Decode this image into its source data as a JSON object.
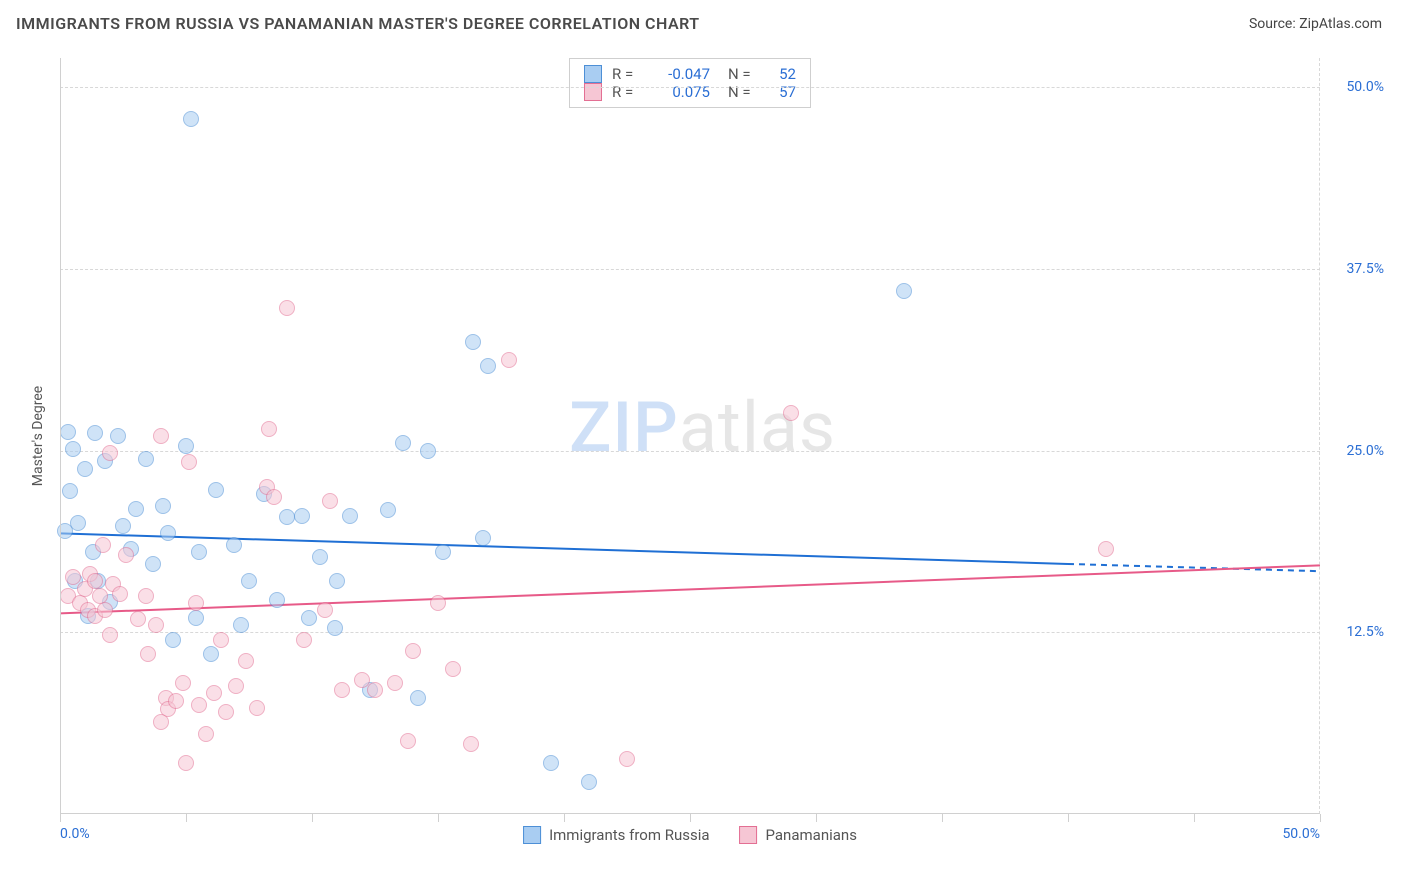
{
  "title": "IMMIGRANTS FROM RUSSIA VS PANAMANIAN MASTER'S DEGREE CORRELATION CHART",
  "source_label": "Source: ",
  "source_name": "ZipAtlas.com",
  "y_axis_title": "Master's Degree",
  "watermark": {
    "part1": "ZIP",
    "part2": "atlas"
  },
  "chart": {
    "type": "scatter",
    "xlim": [
      0,
      50
    ],
    "ylim": [
      0,
      52
    ],
    "x_tick_step": 5,
    "y_ticks": [
      12.5,
      25.0,
      37.5,
      50.0
    ],
    "y_tick_labels": [
      "12.5%",
      "25.0%",
      "37.5%",
      "50.0%"
    ],
    "x_min_label": "0.0%",
    "x_max_label": "50.0%",
    "background_color": "#ffffff",
    "grid_color": "#d8d8d8",
    "axis_label_color": "#2a6ed4",
    "marker_radius": 8,
    "marker_opacity": 0.55,
    "series": [
      {
        "name": "Immigrants from Russia",
        "color_fill": "#a9cdf2",
        "color_stroke": "#4d8fd6",
        "r": "-0.047",
        "n": "52",
        "trend": {
          "y_start": 19.3,
          "y_end_solid": 17.2,
          "x_end_solid": 40,
          "y_end_dash": 16.7,
          "color": "#1f6fd4",
          "width": 2
        },
        "points": [
          [
            5.2,
            47.8
          ],
          [
            0.3,
            26.3
          ],
          [
            0.5,
            25.1
          ],
          [
            1.4,
            26.2
          ],
          [
            1.8,
            24.3
          ],
          [
            1.0,
            23.7
          ],
          [
            2.3,
            26.0
          ],
          [
            3.0,
            21.0
          ],
          [
            3.4,
            24.4
          ],
          [
            4.1,
            21.2
          ],
          [
            0.7,
            20.0
          ],
          [
            1.3,
            18.0
          ],
          [
            0.2,
            19.5
          ],
          [
            2.5,
            19.8
          ],
          [
            2.8,
            18.2
          ],
          [
            3.7,
            17.2
          ],
          [
            4.3,
            19.3
          ],
          [
            5.0,
            25.3
          ],
          [
            5.5,
            18.0
          ],
          [
            6.2,
            22.3
          ],
          [
            6.9,
            18.5
          ],
          [
            7.5,
            16.0
          ],
          [
            8.1,
            22.0
          ],
          [
            9.0,
            20.4
          ],
          [
            9.6,
            20.5
          ],
          [
            10.3,
            17.7
          ],
          [
            11.0,
            16.0
          ],
          [
            11.5,
            20.5
          ],
          [
            13.0,
            20.9
          ],
          [
            13.6,
            25.5
          ],
          [
            14.6,
            25.0
          ],
          [
            15.2,
            18.0
          ],
          [
            16.4,
            32.5
          ],
          [
            16.8,
            19.0
          ],
          [
            17.0,
            30.8
          ],
          [
            19.5,
            3.5
          ],
          [
            21.0,
            2.2
          ],
          [
            12.3,
            8.5
          ],
          [
            14.2,
            8.0
          ],
          [
            10.9,
            12.8
          ],
          [
            7.2,
            13.0
          ],
          [
            6.0,
            11.0
          ],
          [
            5.4,
            13.5
          ],
          [
            4.5,
            12.0
          ],
          [
            2.0,
            14.6
          ],
          [
            1.1,
            13.6
          ],
          [
            0.6,
            16.0
          ],
          [
            1.5,
            16.0
          ],
          [
            33.5,
            36.0
          ],
          [
            8.6,
            14.7
          ],
          [
            9.9,
            13.5
          ],
          [
            0.4,
            22.2
          ]
        ]
      },
      {
        "name": "Panamanians",
        "color_fill": "#f6c6d4",
        "color_stroke": "#e36f93",
        "r": "0.075",
        "n": "57",
        "trend": {
          "y_start": 13.8,
          "y_end_solid": 17.1,
          "x_end_solid": 50,
          "color": "#e75a88",
          "width": 2
        },
        "points": [
          [
            0.3,
            15.0
          ],
          [
            0.5,
            16.3
          ],
          [
            0.8,
            14.5
          ],
          [
            1.0,
            15.5
          ],
          [
            1.1,
            14.0
          ],
          [
            1.2,
            16.5
          ],
          [
            1.4,
            16.0
          ],
          [
            1.4,
            13.6
          ],
          [
            1.6,
            15.0
          ],
          [
            1.8,
            14.0
          ],
          [
            1.7,
            18.5
          ],
          [
            2.0,
            12.3
          ],
          [
            2.1,
            15.8
          ],
          [
            2.4,
            15.1
          ],
          [
            2.6,
            17.8
          ],
          [
            2.0,
            24.8
          ],
          [
            3.1,
            13.4
          ],
          [
            3.4,
            15.0
          ],
          [
            3.5,
            11.0
          ],
          [
            3.8,
            13.0
          ],
          [
            4.0,
            26.0
          ],
          [
            4.2,
            8.0
          ],
          [
            4.3,
            7.2
          ],
          [
            4.6,
            7.8
          ],
          [
            4.0,
            6.3
          ],
          [
            4.9,
            9.0
          ],
          [
            5.1,
            24.2
          ],
          [
            5.4,
            14.5
          ],
          [
            5.5,
            7.5
          ],
          [
            5.8,
            5.5
          ],
          [
            5.0,
            3.5
          ],
          [
            6.1,
            8.3
          ],
          [
            6.4,
            12.0
          ],
          [
            6.6,
            7.0
          ],
          [
            7.0,
            8.8
          ],
          [
            7.4,
            10.5
          ],
          [
            7.8,
            7.3
          ],
          [
            8.2,
            22.5
          ],
          [
            8.5,
            21.8
          ],
          [
            8.3,
            26.5
          ],
          [
            9.0,
            34.8
          ],
          [
            9.7,
            12.0
          ],
          [
            10.5,
            14.0
          ],
          [
            10.7,
            21.5
          ],
          [
            11.2,
            8.5
          ],
          [
            12.0,
            9.2
          ],
          [
            12.5,
            8.5
          ],
          [
            13.3,
            9.0
          ],
          [
            14.0,
            11.2
          ],
          [
            15.0,
            14.5
          ],
          [
            15.6,
            10.0
          ],
          [
            16.3,
            4.8
          ],
          [
            17.8,
            31.2
          ],
          [
            22.5,
            3.8
          ],
          [
            29.0,
            27.6
          ],
          [
            41.5,
            18.2
          ],
          [
            13.8,
            5.0
          ]
        ]
      }
    ]
  },
  "legend_top_labels": {
    "r": "R =",
    "n": "N ="
  }
}
